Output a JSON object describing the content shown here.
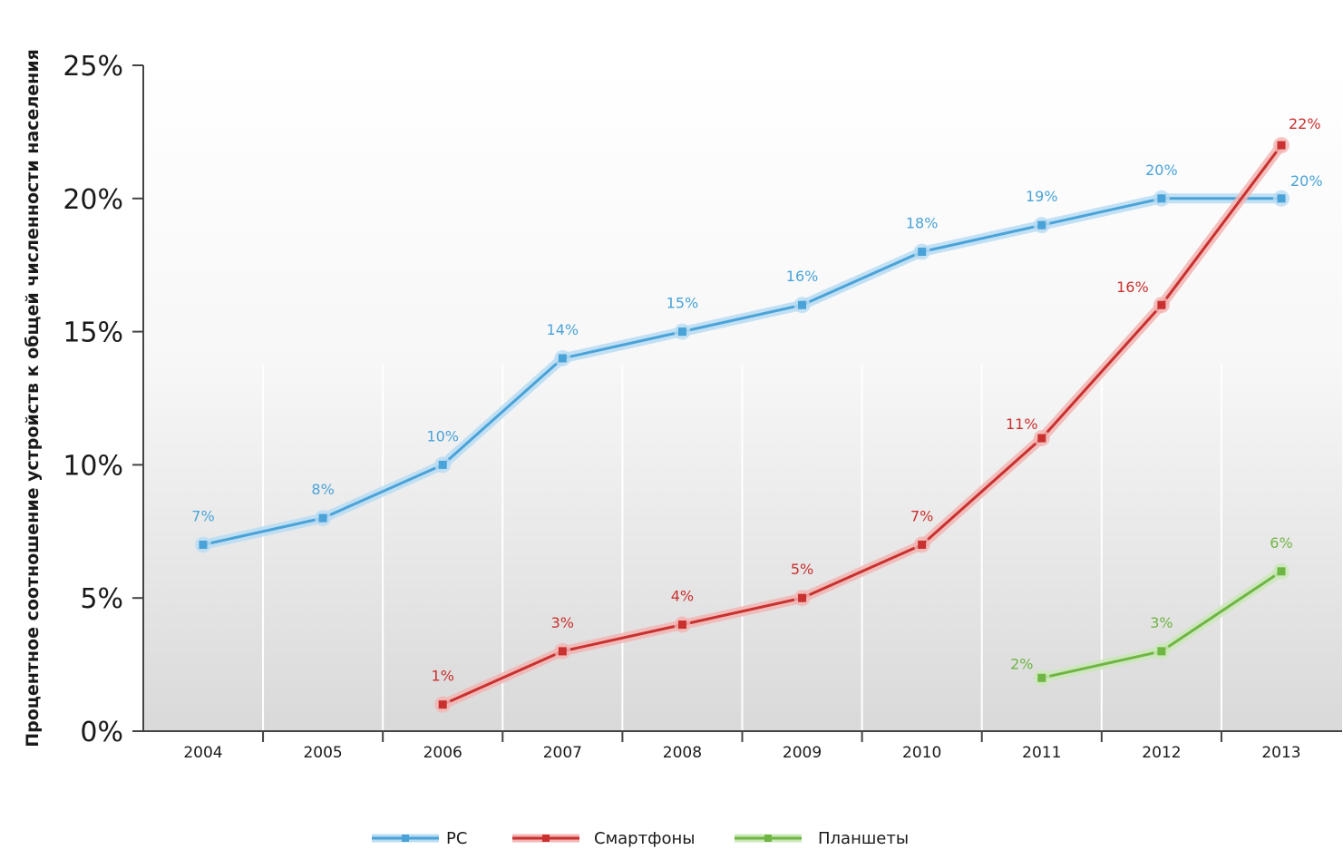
{
  "chart_data": {
    "type": "line",
    "title": "",
    "xlabel": "",
    "ylabel": "Процентное соотношение устройств к общей численности населения",
    "categories": [
      "2004",
      "2005",
      "2006",
      "2007",
      "2008",
      "2009",
      "2010",
      "2011",
      "2012",
      "2013"
    ],
    "ylim": [
      0,
      25
    ],
    "yticks": [
      "0%",
      "5%",
      "10%",
      "15%",
      "20%",
      "25%"
    ],
    "ytick_values": [
      0,
      5,
      10,
      15,
      20,
      25
    ],
    "grid": "vertical",
    "legend_position": "bottom-center",
    "series": [
      {
        "name": "PC",
        "color": "#4aa3d8",
        "glow": "#b9dcf3",
        "values": [
          7,
          8,
          10,
          14,
          15,
          16,
          18,
          19,
          20,
          20
        ],
        "labels": [
          "7%",
          "8%",
          "10%",
          "14%",
          "15%",
          "16%",
          "18%",
          "19%",
          "20%",
          "20%"
        ]
      },
      {
        "name": "Смартфоны",
        "color": "#c8312f",
        "glow": "#f2b5b3",
        "values": [
          null,
          null,
          1,
          3,
          4,
          5,
          7,
          11,
          16,
          22
        ],
        "labels": [
          null,
          null,
          "1%",
          "3%",
          "4%",
          "5%",
          "7%",
          "11%",
          "16%",
          "22%"
        ]
      },
      {
        "name": "Планшеты",
        "color": "#6fb544",
        "glow": "#cbe8b8",
        "values": [
          null,
          null,
          null,
          null,
          null,
          null,
          null,
          2,
          3,
          6
        ],
        "labels": [
          null,
          null,
          null,
          null,
          null,
          null,
          null,
          "2%",
          "3%",
          "6%"
        ]
      }
    ]
  }
}
